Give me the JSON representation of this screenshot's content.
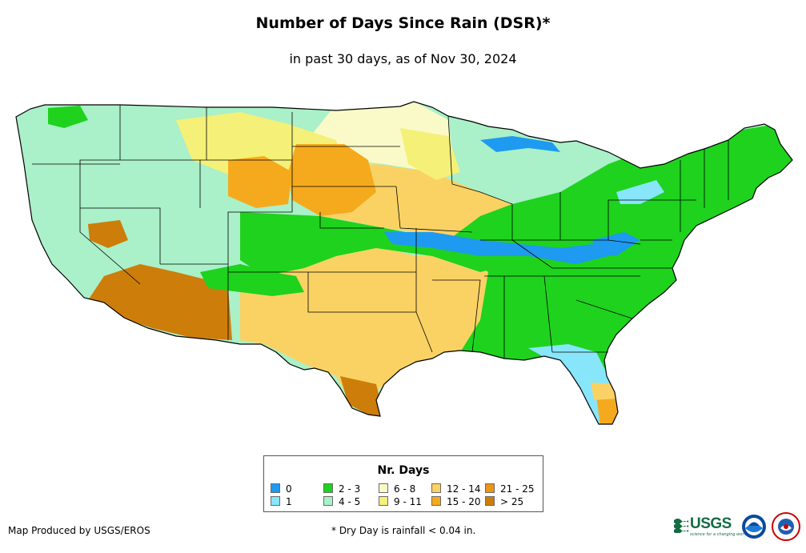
{
  "title": "Number of Days Since Rain (DSR)*",
  "subtitle": "in past 30 days, as of Nov 30, 2024",
  "legend": {
    "title": "Nr. Days",
    "items": [
      {
        "label": "0",
        "color": "#1e9af0"
      },
      {
        "label": "1",
        "color": "#87e6fa"
      },
      {
        "label": "2 - 3",
        "color": "#1ed21e"
      },
      {
        "label": "4 - 5",
        "color": "#aaf0c8"
      },
      {
        "label": "6 - 8",
        "color": "#fafac8"
      },
      {
        "label": "9 - 11",
        "color": "#f5f078"
      },
      {
        "label": "12 - 14",
        "color": "#fad264"
      },
      {
        "label": "15 - 20",
        "color": "#f5aa1e"
      },
      {
        "label": "21 - 25",
        "color": "#eb9614"
      },
      {
        "label": "> 25",
        "color": "#cd7d0a"
      }
    ]
  },
  "footer": {
    "credit": "Map Produced by USGS/EROS",
    "note": "* Dry Day is rainfall < 0.04 in."
  },
  "logos": {
    "usgs": "USGS",
    "usgs_tagline": "science for a changing world",
    "icons": [
      "usgs-logo",
      "noaa-logo",
      "national-weather-service-logo"
    ]
  }
}
